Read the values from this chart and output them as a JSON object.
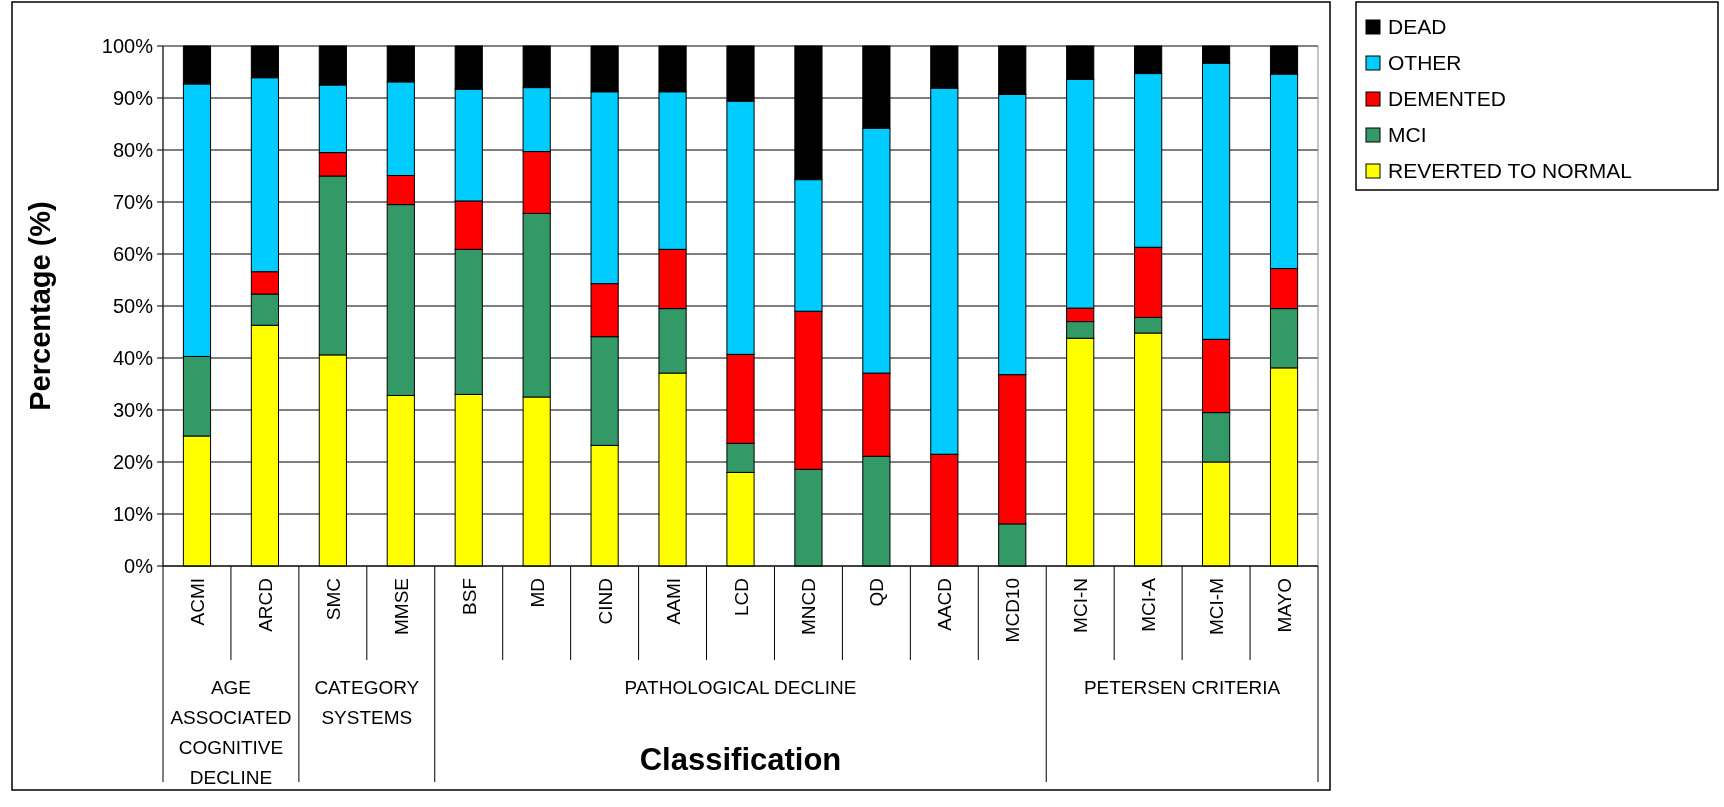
{
  "chart_data": {
    "type": "bar",
    "stacked": true,
    "xlabel": "Classification",
    "ylabel": "Percentage (%)",
    "categories": [
      "ACMI",
      "ARCD",
      "SMC",
      "MMSE",
      "BSF",
      "MD",
      "CIND",
      "AAMI",
      "LCD",
      "MNCD",
      "QD",
      "AACD",
      "MCD10",
      "MCI-N",
      "MCI-A",
      "MCI-M",
      "MAYO"
    ],
    "series": [
      {
        "name": "REVERTED TO NORMAL",
        "color": "#ffff00",
        "values": [
          25,
          46.3,
          40.6,
          32.8,
          33,
          32.5,
          23.2,
          37.1,
          18,
          0,
          0,
          0,
          0,
          43.8,
          44.8,
          20,
          38.1
        ]
      },
      {
        "name": "MCI",
        "color": "#339966",
        "values": [
          15.3,
          6,
          34.4,
          36.7,
          27.9,
          35.3,
          20.9,
          12.4,
          5.6,
          18.6,
          21.1,
          0,
          8.1,
          3.2,
          3,
          9.5,
          11.4
        ]
      },
      {
        "name": "DEMENTED",
        "color": "#ff0000",
        "values": [
          null,
          4.3,
          4.5,
          5.6,
          9.3,
          11.9,
          10.2,
          11.4,
          17.1,
          30.4,
          16,
          21.5,
          28.7,
          2.6,
          13.5,
          14.1,
          7.7
        ]
      },
      {
        "name": "OTHER",
        "color": "#00ccff",
        "values": [
          52.4,
          37.3,
          13,
          18,
          21.5,
          12.3,
          36.9,
          30.3,
          48.7,
          25.3,
          47.1,
          70.4,
          53.9,
          44,
          33.4,
          53.1,
          37.4
        ]
      },
      {
        "name": "DEAD",
        "color": "#000000",
        "values": [
          7.3,
          6.1,
          7.5,
          6.9,
          8.3,
          8,
          8.8,
          8.8,
          10.6,
          25.7,
          15.8,
          8.1,
          9.3,
          6.4,
          5.3,
          3.3,
          5.4
        ]
      }
    ],
    "ylim": [
      0,
      100
    ],
    "yticks": [
      {
        "value": 0,
        "label": "0%"
      },
      {
        "value": 10,
        "label": "10%"
      },
      {
        "value": 20,
        "label": "20%"
      },
      {
        "value": 30,
        "label": "30%"
      },
      {
        "value": 40,
        "label": "40%"
      },
      {
        "value": 50,
        "label": "50%"
      },
      {
        "value": 60,
        "label": "60%"
      },
      {
        "value": 70,
        "label": "70%"
      },
      {
        "value": 80,
        "label": "80%"
      },
      {
        "value": 90,
        "label": "90%"
      },
      {
        "value": 100,
        "label": "100%"
      }
    ],
    "grid": "y",
    "legend": "right",
    "annotations": [
      "AGE ASSOCIATED COGNITIVE DECLINE",
      "CATEGORY SYSTEMS",
      "PATHOLOGICAL DECLINE",
      "PETERSEN CRITERIA"
    ]
  }
}
